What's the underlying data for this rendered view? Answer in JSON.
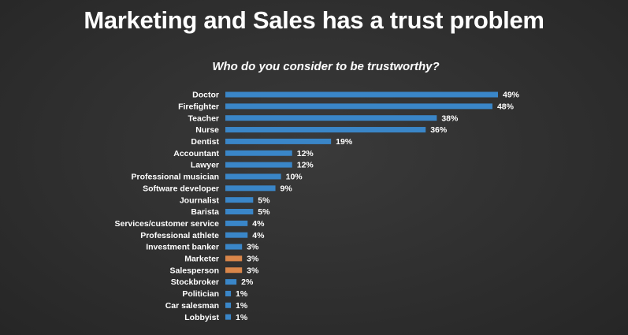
{
  "slide": {
    "title": "Marketing and Sales has a trust problem",
    "subtitle": "Who do you consider to be trustworthy?"
  },
  "colors": {
    "background": "#2e2e2e",
    "bar_default": "#3a86c8",
    "bar_highlight": "#d9864a",
    "text": "#ffffff"
  },
  "chart_data": {
    "type": "bar",
    "orientation": "horizontal",
    "title": "Who do you consider to be trustworthy?",
    "xlabel": "",
    "ylabel": "",
    "xlim": [
      0,
      50
    ],
    "grid": false,
    "legend": "none",
    "value_suffix": "%",
    "categories": [
      "Doctor",
      "Firefighter",
      "Teacher",
      "Nurse",
      "Dentist",
      "Accountant",
      "Lawyer",
      "Professional musician",
      "Software developer",
      "Journalist",
      "Barista",
      "Services/customer service",
      "Professional athlete",
      "Investment banker",
      "Marketer",
      "Salesperson",
      "Stockbroker",
      "Politician",
      "Car salesman",
      "Lobbyist"
    ],
    "values": [
      49,
      48,
      38,
      36,
      19,
      12,
      12,
      10,
      9,
      5,
      5,
      4,
      4,
      3,
      3,
      3,
      2,
      1,
      1,
      1
    ],
    "highlighted": [
      "Marketer",
      "Salesperson"
    ]
  }
}
